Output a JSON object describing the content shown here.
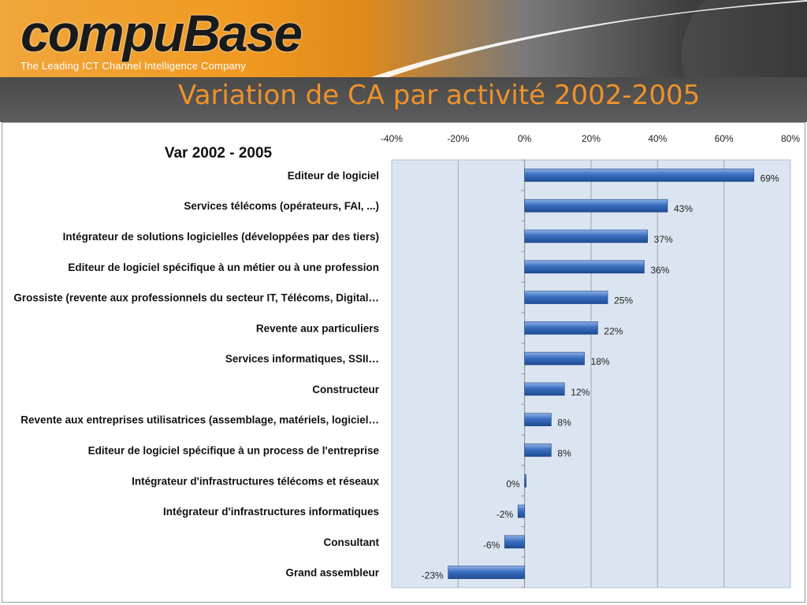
{
  "header": {
    "logo": "compuBase",
    "tagline": "The Leading ICT Channel Intelligence Company",
    "title": "Variation de CA par activité 2002-2005"
  },
  "colors": {
    "accent": "#f0922a",
    "bar": "#3a6fc0",
    "plot_bg": "#dbe5f1"
  },
  "chart_data": {
    "type": "bar",
    "orientation": "horizontal",
    "title": "Var 2002 - 2005",
    "xlim": [
      -40,
      80
    ],
    "x_ticks": [
      "-40%",
      "-20%",
      "0%",
      "20%",
      "40%",
      "60%",
      "80%"
    ],
    "x_tick_values": [
      -40,
      -20,
      0,
      20,
      40,
      60,
      80
    ],
    "grid": true,
    "categories": [
      "Editeur de logiciel",
      "Services télécoms (opérateurs, FAI, ...)",
      "Intégrateur de solutions logicielles (développées par des tiers)",
      "Editeur de logiciel spécifique à un métier ou à une profession",
      "Grossiste (revente aux professionnels du secteur IT, Télécoms, Digital…",
      "Revente aux particuliers",
      "Services informatiques, SSII…",
      "Constructeur",
      "Revente aux entreprises utilisatrices (assemblage, matériels, logiciel…",
      "Editeur de logiciel spécifique à un process de l'entreprise",
      "Intégrateur d'infrastructures télécoms et réseaux",
      "Intégrateur d'infrastructures informatiques",
      "Consultant",
      "Grand assembleur"
    ],
    "values": [
      69,
      43,
      37,
      36,
      25,
      22,
      18,
      12,
      8,
      8,
      0,
      -2,
      -6,
      -23
    ],
    "value_labels": [
      "69%",
      "43%",
      "37%",
      "36%",
      "25%",
      "22%",
      "18%",
      "12%",
      "8%",
      "8%",
      "0%",
      "-2%",
      "-6%",
      "-23%"
    ]
  }
}
